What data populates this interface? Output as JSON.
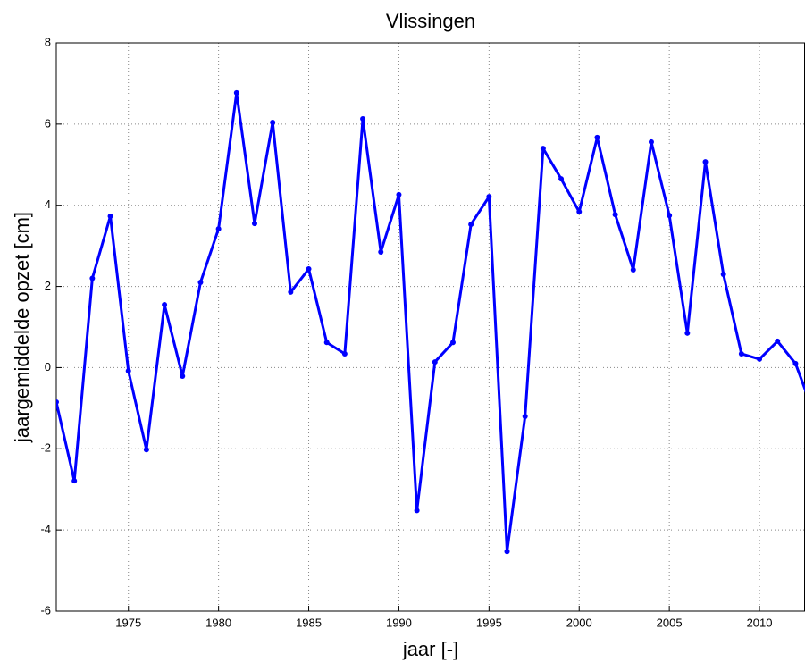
{
  "chart_data": {
    "type": "line",
    "title": "Vlissingen",
    "xlabel": "jaar [-]",
    "ylabel": "jaargemiddelde opzet [cm]",
    "x": [
      1971,
      1972,
      1973,
      1974,
      1975,
      1976,
      1977,
      1978,
      1979,
      1980,
      1981,
      1982,
      1983,
      1984,
      1985,
      1986,
      1987,
      1988,
      1989,
      1990,
      1991,
      1992,
      1993,
      1994,
      1995,
      1996,
      1997,
      1998,
      1999,
      2000,
      2001,
      2002,
      2003,
      2004,
      2005,
      2006,
      2007,
      2008,
      2009,
      2010,
      2011,
      2012,
      2013
    ],
    "series": [
      {
        "color": "#0000ff",
        "values": [
          -0.85,
          -2.79,
          2.2,
          3.73,
          -0.08,
          -2.02,
          1.55,
          -0.21,
          2.1,
          3.42,
          6.77,
          3.55,
          6.04,
          1.86,
          2.43,
          0.62,
          0.34,
          6.13,
          2.85,
          4.26,
          -3.52,
          0.14,
          0.62,
          3.53,
          4.21,
          -4.53,
          -1.2,
          5.4,
          4.65,
          3.84,
          5.67,
          3.77,
          2.41,
          5.56,
          3.75,
          0.85,
          5.07,
          2.3,
          0.34,
          0.21,
          0.65,
          0.1,
          -1.1
        ]
      }
    ],
    "xlim": [
      1971,
      2012.5
    ],
    "ylim": [
      -6,
      8
    ],
    "xticks": [
      1975,
      1980,
      1985,
      1990,
      1995,
      2000,
      2005,
      2010
    ],
    "yticks": [
      -6,
      -4,
      -2,
      0,
      2,
      4,
      6,
      8
    ],
    "grid": true
  }
}
